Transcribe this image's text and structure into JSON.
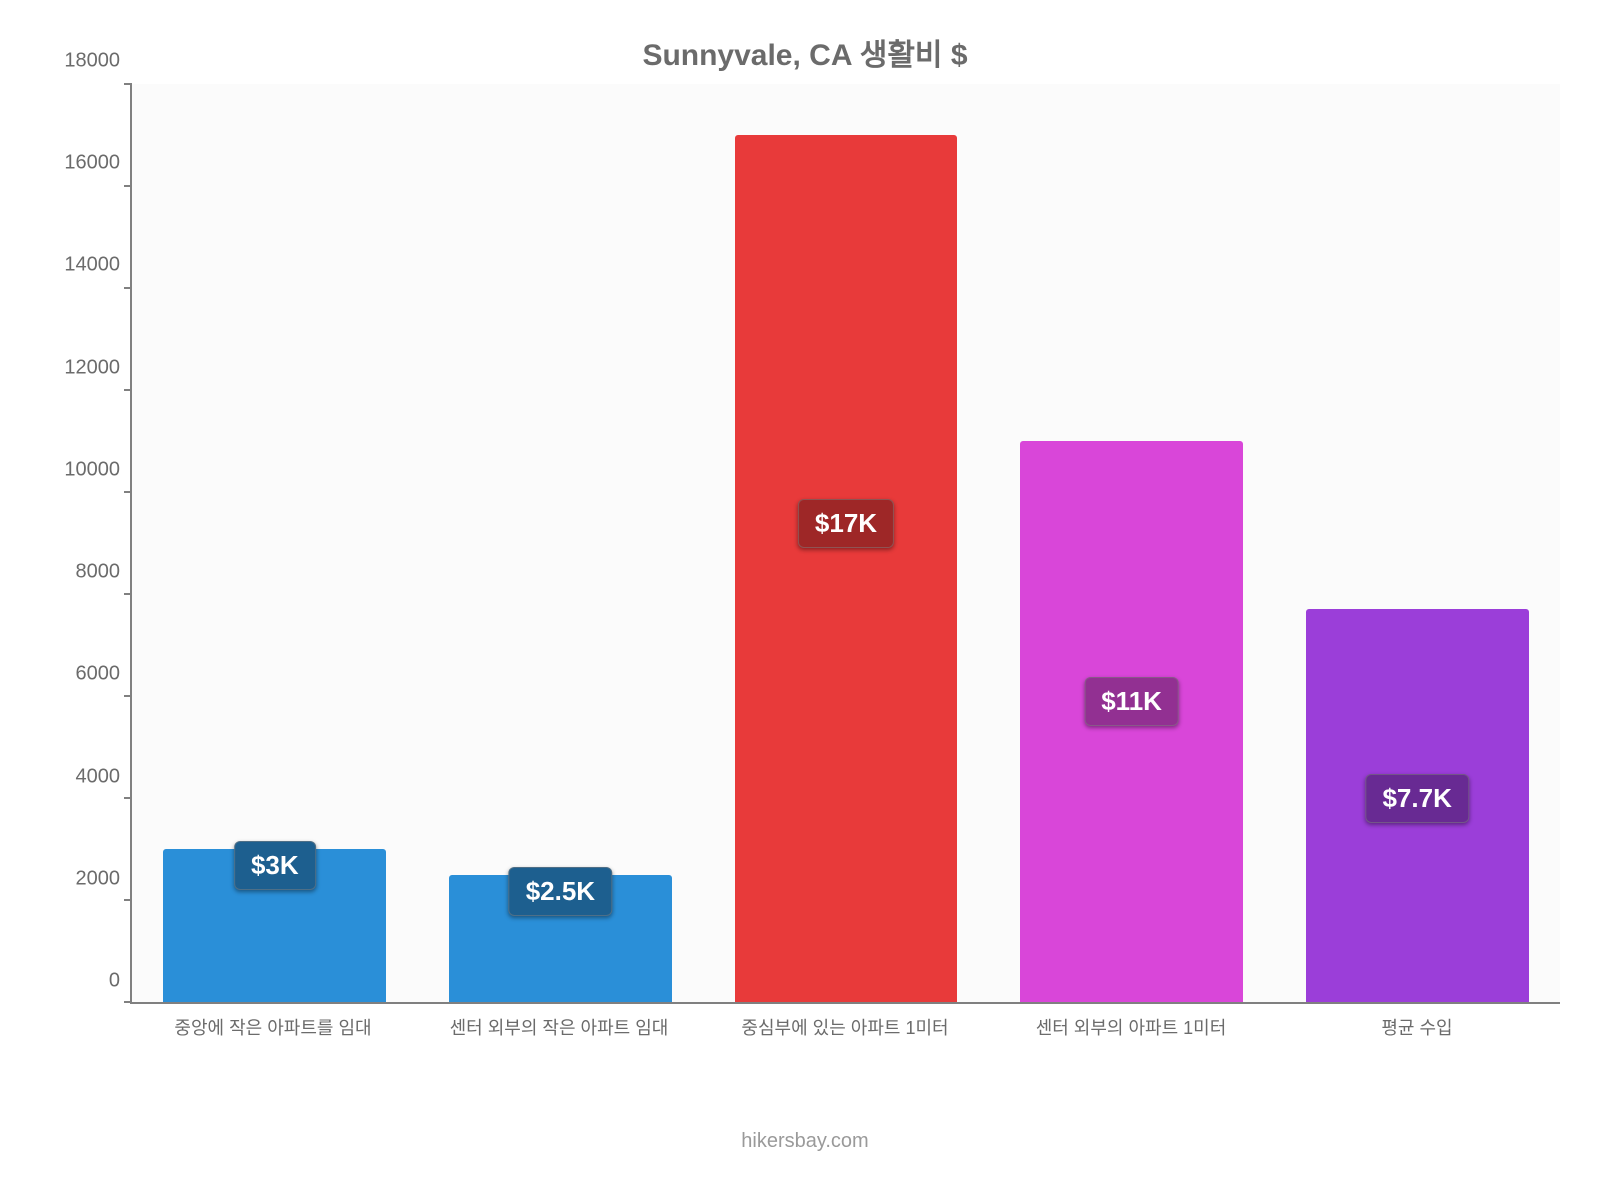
{
  "chart": {
    "type": "bar",
    "title": "Sunnyvale, CA 생활비 $",
    "title_fontsize": 30,
    "title_color": "#6b6b6b",
    "background_color": "#ffffff",
    "plot_background": "#fbfbfb",
    "axis_color": "#808080",
    "label_color": "#6b6b6b",
    "ylim": [
      0,
      18000
    ],
    "ytick_step": 2000,
    "yticks": [
      0,
      2000,
      4000,
      6000,
      8000,
      10000,
      12000,
      14000,
      16000,
      18000
    ],
    "bar_width_pct": 78,
    "categories": [
      "중앙에 작은 아파트를 임대",
      "센터 외부의 작은 아파트 임대",
      "중심부에 있는 아파트 1미터",
      "센터 외부의 아파트 1미터",
      "평균 수입"
    ],
    "values": [
      3000,
      2500,
      17000,
      11000,
      7700
    ],
    "value_labels": [
      "$3K",
      "$2.5K",
      "$17K",
      "$11K",
      "$7.7K"
    ],
    "bar_colors": [
      "#2a8fd8",
      "#2a8fd8",
      "#e83a3a",
      "#d946d9",
      "#9b3ed9"
    ],
    "badge_colors": [
      "#1d5f8f",
      "#1d5f8f",
      "#9e2727",
      "#923092",
      "#682a93"
    ],
    "badge_text_color": "#ffffff",
    "badge_fontsize": 26,
    "x_label_fontsize": 18,
    "y_label_fontsize": 20,
    "attribution": "hikersbay.com",
    "attribution_color": "#9a9a9a"
  }
}
